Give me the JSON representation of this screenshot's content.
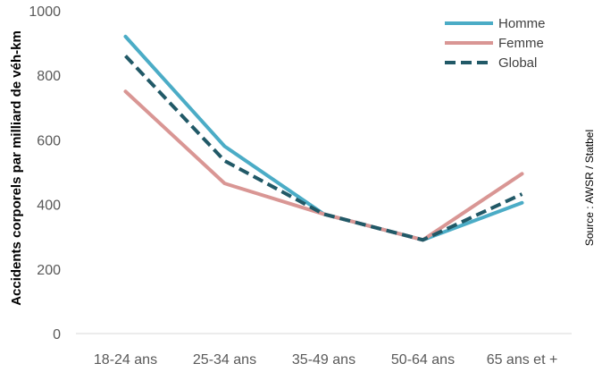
{
  "chart_data": {
    "type": "line",
    "categories": [
      "18-24 ans",
      "25-34 ans",
      "35-49 ans",
      "50-64 ans",
      "65 ans et +"
    ],
    "series": [
      {
        "name": "Homme",
        "values": [
          920,
          580,
          370,
          290,
          405
        ],
        "color": "#4bacc6",
        "dashed": false
      },
      {
        "name": "Femme",
        "values": [
          750,
          465,
          370,
          290,
          495
        ],
        "color": "#d99694",
        "dashed": false
      },
      {
        "name": "Global",
        "values": [
          860,
          535,
          370,
          290,
          432
        ],
        "color": "#215967",
        "dashed": true
      }
    ],
    "ylabel": "Accidents corporels par milliard de véh-km",
    "ylim": [
      0,
      1000
    ],
    "yticks": [
      0,
      200,
      400,
      600,
      800,
      1000
    ],
    "grid": false,
    "legend_position": "top-right",
    "source": "Source : AWSR / Statbel"
  }
}
